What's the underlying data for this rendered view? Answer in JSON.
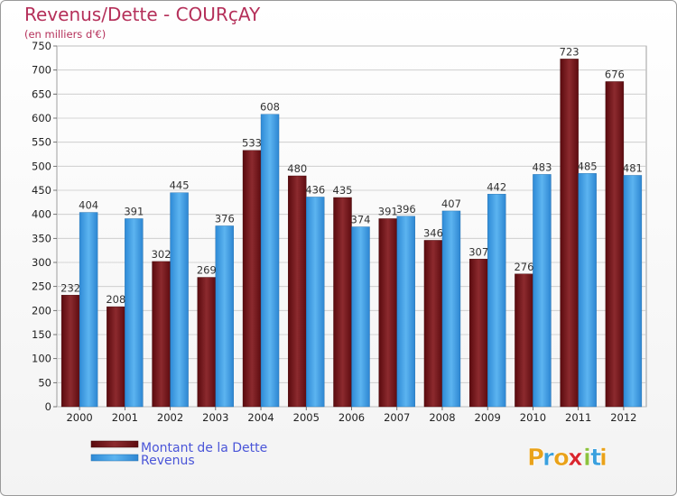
{
  "chart_data": {
    "type": "bar",
    "title": "Revenus/Dette - COURçAY",
    "subtitle": "(en milliers d'€)",
    "categories": [
      "2000",
      "2001",
      "2002",
      "2003",
      "2004",
      "2005",
      "2006",
      "2007",
      "2008",
      "2009",
      "2010",
      "2011",
      "2012"
    ],
    "series": [
      {
        "name": "Montant de la Dette",
        "color": "#7a1a1e",
        "values": [
          232,
          208,
          302,
          269,
          533,
          480,
          435,
          391,
          346,
          307,
          276,
          723,
          676
        ]
      },
      {
        "name": "Revenus",
        "color": "#4aa3e8",
        "values": [
          404,
          391,
          445,
          376,
          608,
          436,
          374,
          396,
          407,
          442,
          483,
          485,
          481
        ]
      }
    ],
    "ylim": [
      0,
      750
    ],
    "yticks": [
      0,
      50,
      100,
      150,
      200,
      250,
      300,
      350,
      400,
      450,
      500,
      550,
      600,
      650,
      700,
      750
    ],
    "grid": true,
    "legend_position": "bottom-left"
  },
  "brand": {
    "letters": [
      "P",
      "r",
      "o",
      "x",
      "i",
      "t",
      "i"
    ],
    "colors": [
      "#e9a21a",
      "#3aa0de",
      "#e9a21a",
      "#d9262e",
      "#8cc23e",
      "#3aa0de",
      "#e9a21a"
    ]
  }
}
